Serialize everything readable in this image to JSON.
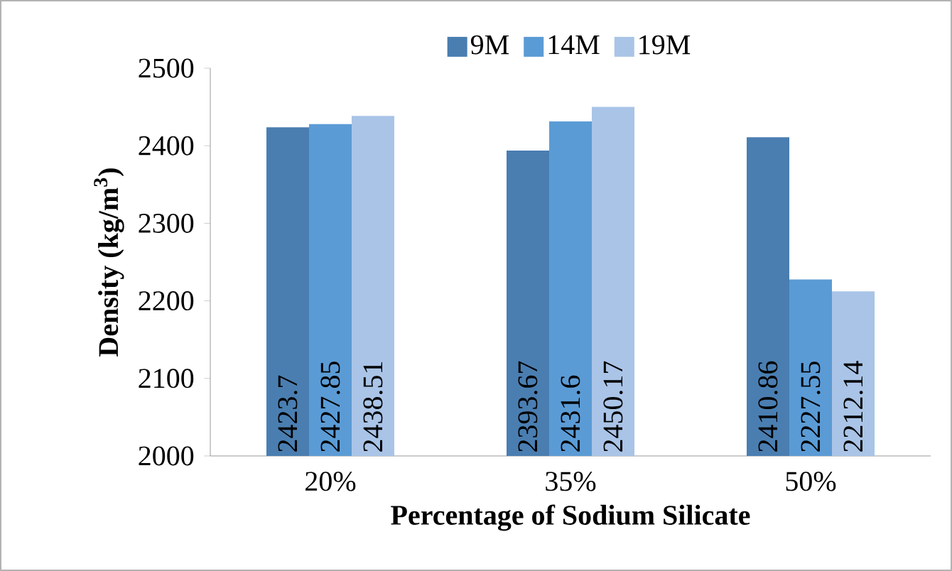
{
  "chart_data": {
    "type": "bar",
    "xlabel": "Percentage of Sodium Silicate",
    "ylabel": "Density (kg/m$^{3}$)",
    "categories": [
      "20%",
      "35%",
      "50%"
    ],
    "series": [
      {
        "name": "9M",
        "color": "#4a7eb1",
        "values": [
          2423.7,
          2393.67,
          2410.86
        ]
      },
      {
        "name": "14M",
        "color": "#5b9bd5",
        "values": [
          2427.85,
          2431.6,
          2227.55
        ]
      },
      {
        "name": "19M",
        "color": "#a9c4e7",
        "values": [
          2438.51,
          2450.17,
          2212.14
        ]
      }
    ],
    "ylim": [
      2000,
      2500
    ],
    "yticks": [
      2000,
      2100,
      2200,
      2300,
      2400,
      2500
    ],
    "data_labels": true,
    "legend": "top"
  }
}
